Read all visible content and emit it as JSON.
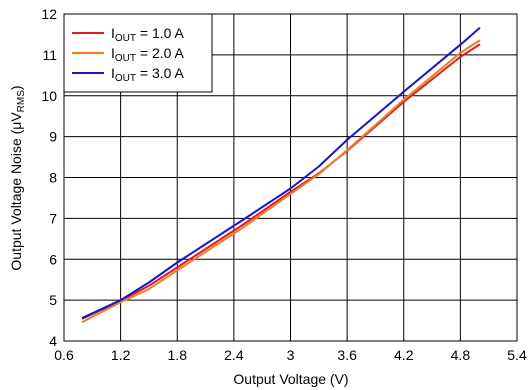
{
  "chart_data": {
    "type": "line",
    "title": "",
    "xlabel": "Output Voltage (V)",
    "ylabel_parts": {
      "main": "Output Voltage Noise (μV",
      "sub": "RMS",
      "close": ")"
    },
    "xlim": [
      0.6,
      5.4
    ],
    "ylim": [
      4,
      12
    ],
    "x_ticks": [
      0.6,
      1.2,
      1.8,
      2.4,
      3,
      3.6,
      4.2,
      4.8,
      5.4
    ],
    "y_ticks": [
      4,
      5,
      6,
      7,
      8,
      9,
      10,
      11,
      12
    ],
    "x_tick_labels": [
      "0.6",
      "1.2",
      "1.8",
      "2.4",
      "3",
      "3.6",
      "4.2",
      "4.8",
      "5.4"
    ],
    "y_tick_labels": [
      "4",
      "5",
      "6",
      "7",
      "8",
      "9",
      "10",
      "11",
      "12"
    ],
    "grid": true,
    "legend_placement": "top-left",
    "series": [
      {
        "name_parts": {
          "pre": "I",
          "sub": "OUT",
          "post": " = 1.0 A"
        },
        "color": "#e41a1c",
        "x": [
          0.8,
          1.2,
          1.5,
          1.8,
          2.5,
          3.0,
          3.3,
          3.6,
          4.2,
          4.8,
          5.0
        ],
        "y": [
          4.55,
          4.98,
          5.35,
          5.8,
          6.85,
          7.65,
          8.1,
          8.65,
          9.85,
          10.95,
          11.25
        ]
      },
      {
        "name_parts": {
          "pre": "I",
          "sub": "OUT",
          "post": " = 2.0 A"
        },
        "color": "#f07f23",
        "x": [
          0.8,
          1.2,
          1.5,
          1.8,
          2.5,
          3.0,
          3.3,
          3.6,
          4.2,
          4.8,
          5.0
        ],
        "y": [
          4.47,
          4.95,
          5.27,
          5.73,
          6.78,
          7.6,
          8.08,
          8.67,
          9.9,
          11.05,
          11.35
        ]
      },
      {
        "name_parts": {
          "pre": "I",
          "sub": "OUT",
          "post": " = 3.0 A"
        },
        "color": "#1515d8",
        "x": [
          0.8,
          1.2,
          1.5,
          1.8,
          2.5,
          3.0,
          3.3,
          3.6,
          4.2,
          4.8,
          5.0
        ],
        "y": [
          4.57,
          5.0,
          5.43,
          5.92,
          6.97,
          7.73,
          8.27,
          8.92,
          10.1,
          11.25,
          11.65
        ]
      }
    ]
  }
}
